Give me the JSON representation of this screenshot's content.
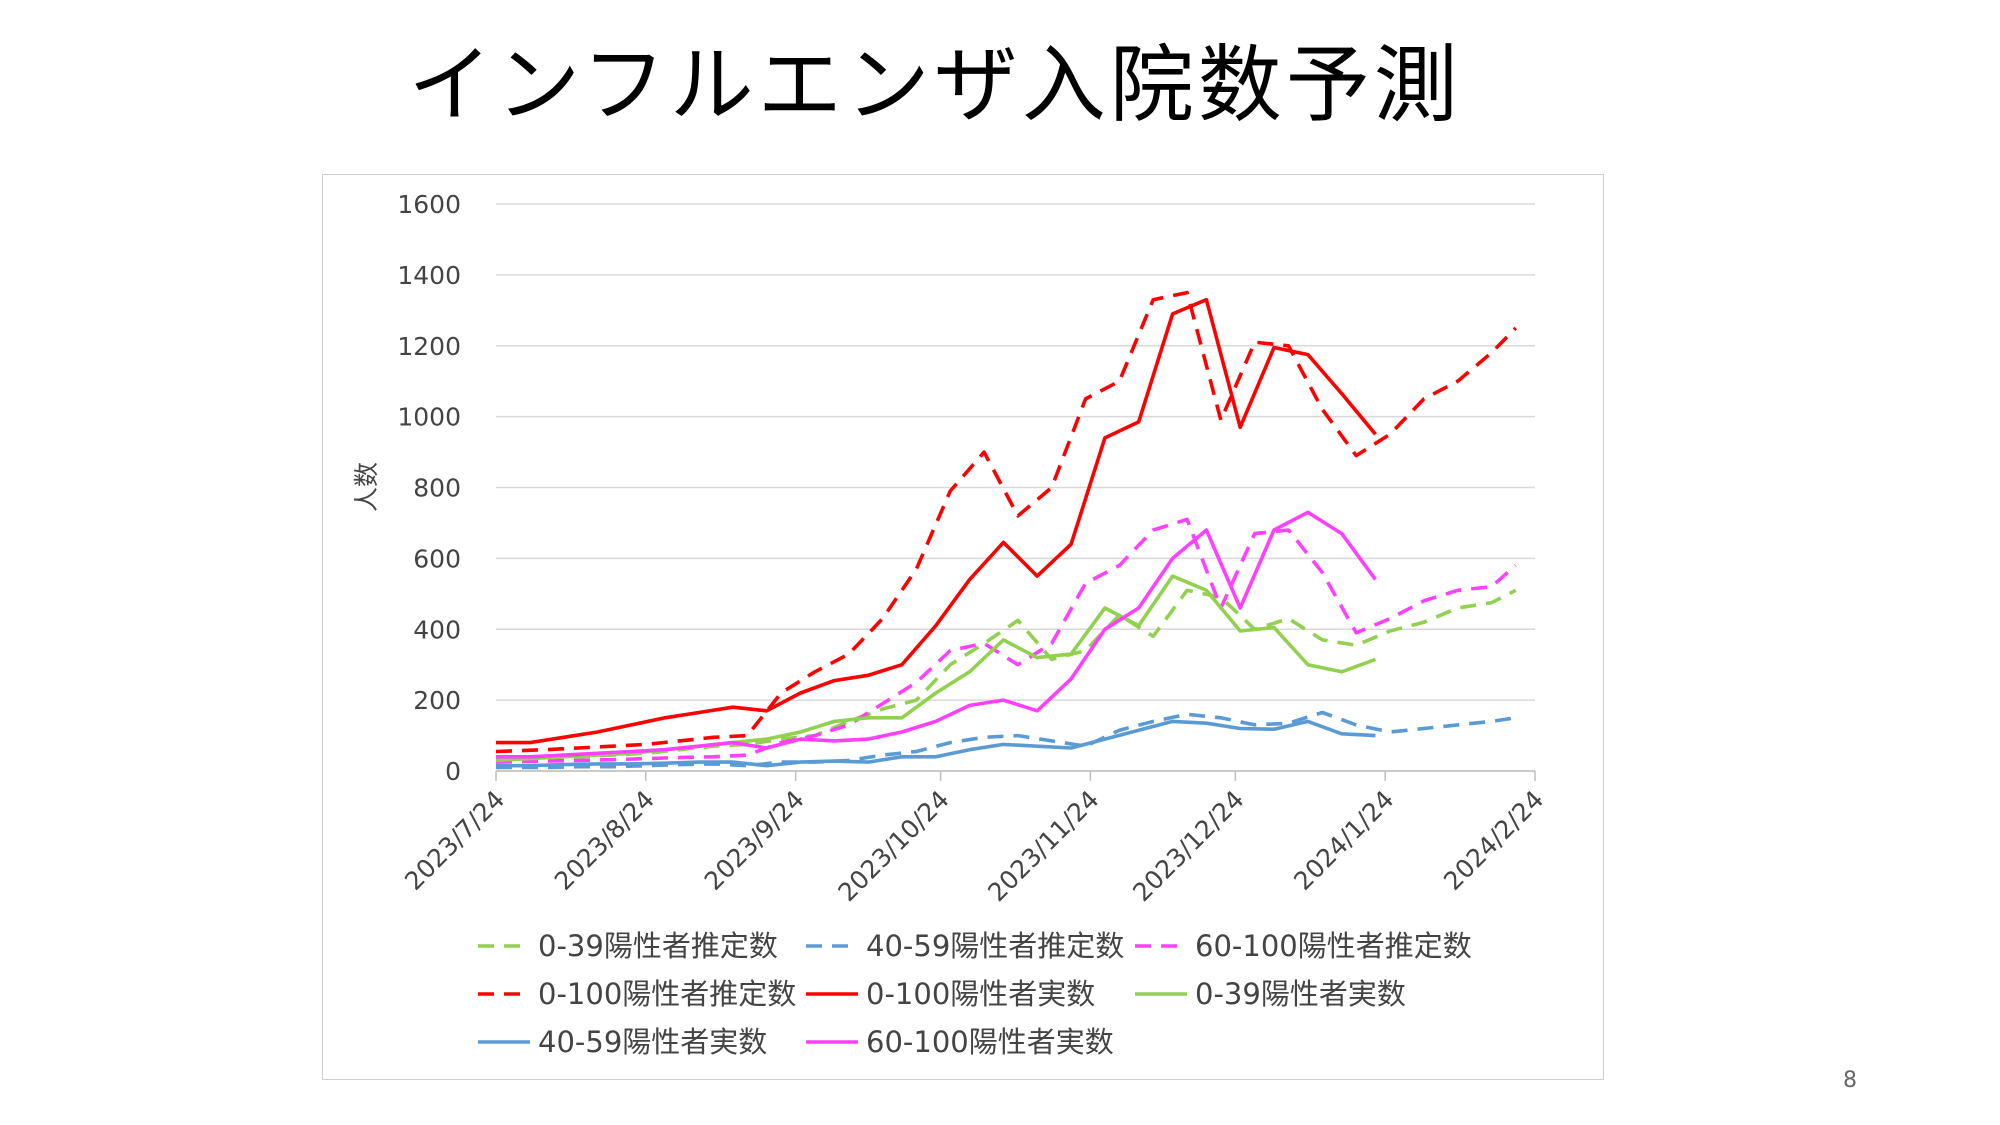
{
  "slide": {
    "title": "インフルエンザ入院数予測",
    "page_number": "8"
  },
  "chart_data": {
    "type": "line",
    "title": "インフルエンザ入院数予測",
    "xlabel": "",
    "ylabel": "人数",
    "ylim": [
      0,
      1600
    ],
    "yticks": [
      0,
      200,
      400,
      600,
      800,
      1000,
      1200,
      1400,
      1600
    ],
    "xlim": [
      "2023-07-24",
      "2024-02-24"
    ],
    "xticks": [
      "2023/7/24",
      "2023/8/24",
      "2023/9/24",
      "2023/10/24",
      "2023/11/24",
      "2023/12/24",
      "2024/1/24",
      "2024/2/24"
    ],
    "grid": "horizontal",
    "legend_position": "bottom",
    "series": [
      {
        "name": "0-39陽性者推定数",
        "color": "#92d050",
        "dash": true,
        "x": [
          "2023-07-24",
          "2023-08-03",
          "2023-08-10",
          "2023-08-17",
          "2023-08-24",
          "2023-08-31",
          "2023-09-07",
          "2023-09-14",
          "2023-09-21",
          "2023-09-28",
          "2023-10-05",
          "2023-10-12",
          "2023-10-19",
          "2023-10-26",
          "2023-11-02",
          "2023-11-09",
          "2023-11-16",
          "2023-11-23",
          "2023-11-30",
          "2023-12-07",
          "2023-12-14",
          "2023-12-21",
          "2023-12-28",
          "2024-01-04",
          "2024-01-11",
          "2024-01-18",
          "2024-01-25",
          "2024-02-01",
          "2024-02-08",
          "2024-02-15",
          "2024-02-20"
        ],
        "y": [
          30,
          35,
          40,
          45,
          50,
          60,
          70,
          75,
          90,
          100,
          140,
          175,
          200,
          300,
          360,
          425,
          315,
          340,
          440,
          380,
          510,
          490,
          400,
          430,
          370,
          355,
          395,
          420,
          460,
          475,
          510
        ]
      },
      {
        "name": "40-59陽性者推定数",
        "color": "#5b9bd5",
        "dash": true,
        "x": [
          "2023-07-24",
          "2023-08-03",
          "2023-08-10",
          "2023-08-17",
          "2023-08-24",
          "2023-08-31",
          "2023-09-07",
          "2023-09-14",
          "2023-09-21",
          "2023-09-28",
          "2023-10-05",
          "2023-10-12",
          "2023-10-19",
          "2023-10-26",
          "2023-11-02",
          "2023-11-09",
          "2023-11-16",
          "2023-11-23",
          "2023-11-30",
          "2023-12-07",
          "2023-12-14",
          "2023-12-21",
          "2023-12-28",
          "2024-01-04",
          "2024-01-11",
          "2024-01-18",
          "2024-01-25",
          "2024-02-01",
          "2024-02-08",
          "2024-02-15",
          "2024-02-20"
        ],
        "y": [
          10,
          10,
          12,
          12,
          15,
          18,
          20,
          15,
          25,
          25,
          30,
          45,
          55,
          80,
          95,
          100,
          85,
          70,
          115,
          140,
          160,
          150,
          130,
          135,
          165,
          130,
          110,
          120,
          130,
          140,
          150
        ]
      },
      {
        "name": "60-100陽性者推定数",
        "color": "#ff40ff",
        "dash": true,
        "x": [
          "2023-07-24",
          "2023-08-03",
          "2023-08-10",
          "2023-08-17",
          "2023-08-24",
          "2023-08-31",
          "2023-09-07",
          "2023-09-14",
          "2023-09-21",
          "2023-09-28",
          "2023-10-05",
          "2023-10-12",
          "2023-10-19",
          "2023-10-26",
          "2023-11-02",
          "2023-11-09",
          "2023-11-16",
          "2023-11-23",
          "2023-11-30",
          "2023-12-07",
          "2023-12-14",
          "2023-12-21",
          "2023-12-28",
          "2024-01-04",
          "2024-01-11",
          "2024-01-18",
          "2024-01-25",
          "2024-02-01",
          "2024-02-08",
          "2024-02-15",
          "2024-02-20"
        ],
        "y": [
          25,
          28,
          30,
          32,
          35,
          38,
          40,
          45,
          80,
          100,
          130,
          190,
          250,
          340,
          360,
          300,
          360,
          530,
          580,
          680,
          710,
          460,
          670,
          680,
          560,
          390,
          430,
          480,
          510,
          520,
          580
        ]
      },
      {
        "name": "0-100陽性者推定数",
        "color": "#ff0000",
        "dash": true,
        "x": [
          "2023-07-24",
          "2023-08-03",
          "2023-08-10",
          "2023-08-17",
          "2023-08-24",
          "2023-08-31",
          "2023-09-07",
          "2023-09-14",
          "2023-09-21",
          "2023-09-28",
          "2023-10-05",
          "2023-10-12",
          "2023-10-19",
          "2023-10-26",
          "2023-11-02",
          "2023-11-09",
          "2023-11-16",
          "2023-11-23",
          "2023-11-30",
          "2023-12-07",
          "2023-12-14",
          "2023-12-21",
          "2023-12-28",
          "2024-01-04",
          "2024-01-11",
          "2024-01-18",
          "2024-01-25",
          "2024-02-01",
          "2024-02-08",
          "2024-02-15",
          "2024-02-20"
        ],
        "y": [
          55,
          60,
          65,
          70,
          75,
          85,
          95,
          100,
          220,
          280,
          330,
          430,
          570,
          790,
          900,
          720,
          800,
          1050,
          1100,
          1330,
          1350,
          990,
          1210,
          1200,
          1020,
          890,
          950,
          1050,
          1100,
          1180,
          1250
        ]
      },
      {
        "name": "0-100陽性者実数",
        "color": "#ff0000",
        "dash": false,
        "x": [
          "2023-07-24",
          "2023-07-31",
          "2023-08-07",
          "2023-08-14",
          "2023-08-21",
          "2023-08-28",
          "2023-09-04",
          "2023-09-11",
          "2023-09-18",
          "2023-09-25",
          "2023-10-02",
          "2023-10-09",
          "2023-10-16",
          "2023-10-23",
          "2023-10-30",
          "2023-11-06",
          "2023-11-13",
          "2023-11-20",
          "2023-11-27",
          "2023-12-04",
          "2023-12-11",
          "2023-12-18",
          "2023-12-25",
          "2024-01-01",
          "2024-01-08",
          "2024-01-15",
          "2024-01-22"
        ],
        "y": [
          80,
          80,
          95,
          110,
          130,
          150,
          165,
          180,
          170,
          220,
          255,
          270,
          300,
          410,
          540,
          645,
          550,
          640,
          940,
          985,
          1290,
          1330,
          970,
          1195,
          1175,
          1065,
          950
        ]
      },
      {
        "name": "0-39陽性者実数",
        "color": "#92d050",
        "dash": false,
        "x": [
          "2023-07-24",
          "2023-07-31",
          "2023-08-07",
          "2023-08-14",
          "2023-08-21",
          "2023-08-28",
          "2023-09-04",
          "2023-09-11",
          "2023-09-18",
          "2023-09-25",
          "2023-10-02",
          "2023-10-09",
          "2023-10-16",
          "2023-10-23",
          "2023-10-30",
          "2023-11-06",
          "2023-11-13",
          "2023-11-20",
          "2023-11-27",
          "2023-12-04",
          "2023-12-11",
          "2023-12-18",
          "2023-12-25",
          "2024-01-01",
          "2024-01-08",
          "2024-01-15",
          "2024-01-22"
        ],
        "y": [
          30,
          35,
          40,
          45,
          50,
          60,
          70,
          80,
          90,
          110,
          140,
          150,
          150,
          220,
          280,
          370,
          320,
          330,
          460,
          410,
          550,
          510,
          395,
          405,
          300,
          280,
          315
        ]
      },
      {
        "name": "40-59陽性者実数",
        "color": "#5b9bd5",
        "dash": false,
        "x": [
          "2023-07-24",
          "2023-07-31",
          "2023-08-07",
          "2023-08-14",
          "2023-08-21",
          "2023-08-28",
          "2023-09-04",
          "2023-09-11",
          "2023-09-18",
          "2023-09-25",
          "2023-10-02",
          "2023-10-09",
          "2023-10-16",
          "2023-10-23",
          "2023-10-30",
          "2023-11-06",
          "2023-11-13",
          "2023-11-20",
          "2023-11-27",
          "2023-12-04",
          "2023-12-11",
          "2023-12-18",
          "2023-12-25",
          "2024-01-01",
          "2024-01-08",
          "2024-01-15",
          "2024-01-22"
        ],
        "y": [
          15,
          15,
          18,
          20,
          20,
          22,
          25,
          25,
          15,
          25,
          28,
          25,
          40,
          40,
          60,
          75,
          70,
          65,
          90,
          115,
          140,
          135,
          120,
          118,
          140,
          105,
          100
        ]
      },
      {
        "name": "60-100陽性者実数",
        "color": "#ff40ff",
        "dash": false,
        "x": [
          "2023-07-24",
          "2023-07-31",
          "2023-08-07",
          "2023-08-14",
          "2023-08-21",
          "2023-08-28",
          "2023-09-04",
          "2023-09-11",
          "2023-09-18",
          "2023-09-25",
          "2023-10-02",
          "2023-10-09",
          "2023-10-16",
          "2023-10-23",
          "2023-10-30",
          "2023-11-06",
          "2023-11-13",
          "2023-11-20",
          "2023-11-27",
          "2023-12-04",
          "2023-12-11",
          "2023-12-18",
          "2023-12-25",
          "2024-01-01",
          "2024-01-08",
          "2024-01-15",
          "2024-01-22"
        ],
        "y": [
          40,
          40,
          45,
          50,
          55,
          60,
          70,
          80,
          65,
          90,
          85,
          90,
          110,
          140,
          185,
          200,
          170,
          260,
          400,
          460,
          600,
          680,
          460,
          680,
          730,
          670,
          540
        ]
      }
    ],
    "legend_order": [
      0,
      1,
      2,
      3,
      4,
      5,
      6,
      7
    ]
  }
}
